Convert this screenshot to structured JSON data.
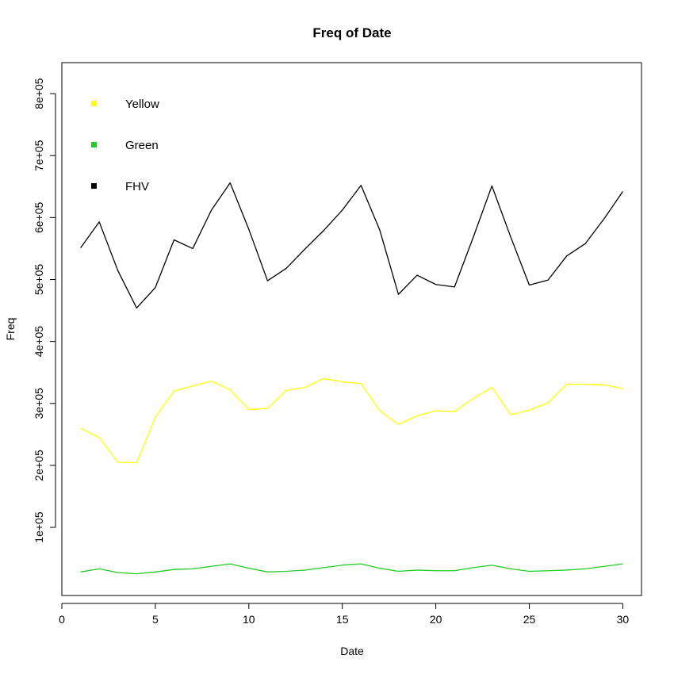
{
  "chart_data": {
    "type": "line",
    "title": "Freq of Date",
    "xlabel": "Date",
    "ylabel": "Freq",
    "xlim": [
      0,
      31
    ],
    "ylim": [
      -10000,
      850000
    ],
    "xticks": [
      0,
      5,
      10,
      15,
      20,
      25,
      30
    ],
    "yticks": [
      100000,
      200000,
      300000,
      400000,
      500000,
      600000,
      700000,
      800000
    ],
    "ytick_labels": [
      "1e+05",
      "2e+05",
      "3e+05",
      "4e+05",
      "5e+05",
      "6e+05",
      "7e+05",
      "8e+05"
    ],
    "grid": false,
    "legend_position": "top-left",
    "x": [
      1,
      2,
      3,
      4,
      5,
      6,
      7,
      8,
      9,
      10,
      11,
      12,
      13,
      14,
      15,
      16,
      17,
      18,
      19,
      20,
      21,
      22,
      23,
      24,
      25,
      26,
      27,
      28,
      29,
      30
    ],
    "series": [
      {
        "name": "Yellow",
        "color": "#ffff00",
        "values": [
          260000,
          245000,
          205000,
          204000,
          278000,
          320000,
          328000,
          336000,
          322000,
          290000,
          292000,
          321000,
          326000,
          340000,
          335000,
          332000,
          288000,
          266000,
          280000,
          288000,
          287000,
          308000,
          326000,
          282000,
          289000,
          301000,
          331000,
          331000,
          330000,
          324000
        ]
      },
      {
        "name": "Green",
        "color": "#22cc22",
        "values": [
          28000,
          33000,
          27000,
          25000,
          28000,
          32000,
          33000,
          37000,
          41000,
          34000,
          28000,
          29000,
          31000,
          35000,
          39000,
          41000,
          34000,
          29000,
          31000,
          30000,
          30000,
          35000,
          39000,
          33000,
          29000,
          30000,
          31000,
          33000,
          37000,
          41000
        ]
      },
      {
        "name": "FHV",
        "color": "#000000",
        "values": [
          551000,
          593000,
          514000,
          454000,
          487000,
          564000,
          550000,
          612000,
          656000,
          581000,
          498000,
          518000,
          549000,
          579000,
          612000,
          652000,
          580000,
          476000,
          507000,
          492000,
          488000,
          568000,
          651000,
          569000,
          491000,
          499000,
          538000,
          558000,
          598000,
          642000
        ]
      }
    ]
  }
}
